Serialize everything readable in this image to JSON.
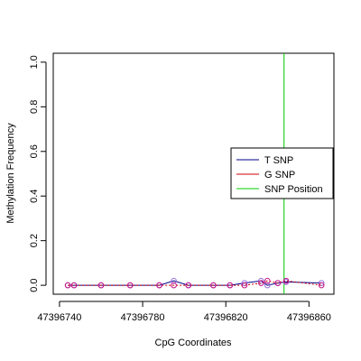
{
  "chart_data": {
    "type": "line",
    "xlabel": "CpG Coordinates",
    "ylabel": "Methylation Frequency",
    "xlim": [
      47396737,
      47396872
    ],
    "ylim": [
      -0.04,
      1.04
    ],
    "x_ticks": [
      47396740,
      47396780,
      47396820,
      47396860
    ],
    "x_tick_labels": [
      "47396740",
      "47396780",
      "47396820",
      "47396860"
    ],
    "y_ticks": [
      0,
      0.2,
      0.4,
      0.6,
      0.8,
      1.0
    ],
    "y_tick_labels": [
      "0.0",
      "0.2",
      "0.4",
      "0.6",
      "0.8",
      "1.0"
    ],
    "grid": false,
    "legend_position": "right",
    "snp_position": 47396848,
    "series": [
      {
        "name": "T SNP",
        "color": "#00008B",
        "marker_color": "#9370DB",
        "x": [
          47396744,
          47396747,
          47396760,
          47396774,
          47396788,
          47396795,
          47396802,
          47396814,
          47396822,
          47396829,
          47396837,
          47396840,
          47396845,
          47396849,
          47396866
        ],
        "values": [
          0.0,
          0.0,
          0.0,
          0.0,
          0.0,
          0.02,
          0.0,
          0.0,
          0.0,
          0.01,
          0.02,
          0.0,
          0.01,
          0.015,
          0.01
        ]
      },
      {
        "name": "G SNP",
        "color": "#CC0000",
        "marker_color": "#C71585",
        "x": [
          47396744,
          47396747,
          47396760,
          47396774,
          47396788,
          47396795,
          47396802,
          47396814,
          47396822,
          47396829,
          47396837,
          47396840,
          47396845,
          47396849,
          47396866
        ],
        "values": [
          0.0,
          0.0,
          0.0,
          0.0,
          0.0,
          0.0,
          0.0,
          0.0,
          0.0,
          0.0,
          0.01,
          0.02,
          0.01,
          0.02,
          0.0
        ]
      }
    ],
    "legend": [
      {
        "label": "T SNP",
        "color": "#00008B"
      },
      {
        "label": "G SNP",
        "color": "#CC0000"
      },
      {
        "label": "SNP Position",
        "color": "#00CC00"
      }
    ]
  }
}
